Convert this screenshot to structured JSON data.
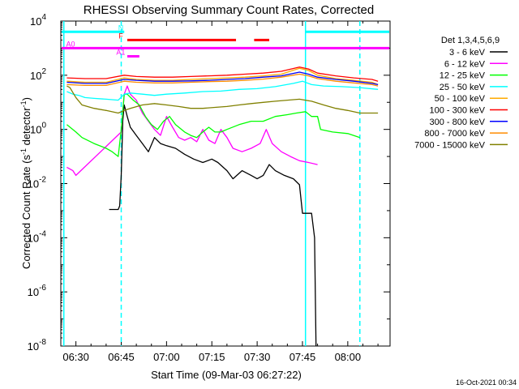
{
  "chart_data": {
    "type": "line",
    "title": "RHESSI Observing Summary Count Rates, Corrected",
    "xlabel": "Start Time (09-Mar-03 06:27:22)",
    "ylabel_prefix": "Corrected Count Rate (s",
    "ylabel_sup1": "-1",
    "ylabel_mid": " detector",
    "ylabel_sup2": "-1",
    "ylabel_suffix": ")",
    "yscale": "log",
    "ylim": [
      1e-08,
      10000
    ],
    "xlim": [
      "06:25",
      "08:14"
    ],
    "x_ticks": [
      "06:30",
      "06:45",
      "07:00",
      "07:15",
      "07:30",
      "07:45",
      "08:00"
    ],
    "y_ticks": [
      {
        "exp": "4",
        "value": 10000
      },
      {
        "exp": "2",
        "value": 100
      },
      {
        "exp": "0",
        "value": 1
      },
      {
        "exp": "-2",
        "value": 0.01
      },
      {
        "exp": "-4",
        "value": 0.0001
      },
      {
        "exp": "-6",
        "value": 1e-06
      },
      {
        "exp": "-8",
        "value": 1e-08
      }
    ],
    "legend_title": "Det 1,3,4,5,6,9",
    "legend_position": "right",
    "series": [
      {
        "name": "3 - 6 keV",
        "color": "#000000",
        "points": [
          [
            "06:41",
            0.0011
          ],
          [
            "06:44",
            0.0011
          ],
          [
            "06:44.5",
            0.0015
          ],
          [
            "06:45",
            0.02
          ],
          [
            "06:45.5",
            2
          ],
          [
            "06:46",
            8
          ],
          [
            "06:47",
            3
          ],
          [
            "06:48",
            1.2
          ],
          [
            "06:50",
            0.6
          ],
          [
            "06:52",
            0.3
          ],
          [
            "06:54",
            0.15
          ],
          [
            "06:56",
            0.5
          ],
          [
            "06:58",
            0.3
          ],
          [
            "07:00",
            0.25
          ],
          [
            "07:03",
            0.2
          ],
          [
            "07:06",
            0.12
          ],
          [
            "07:09",
            0.08
          ],
          [
            "07:12",
            0.06
          ],
          [
            "07:15",
            0.08
          ],
          [
            "07:17",
            0.06
          ],
          [
            "07:20",
            0.03
          ],
          [
            "07:22",
            0.015
          ],
          [
            "07:25",
            0.03
          ],
          [
            "07:28",
            0.02
          ],
          [
            "07:30",
            0.015
          ],
          [
            "07:32",
            0.02
          ],
          [
            "07:34",
            0.05
          ],
          [
            "07:36",
            0.03
          ],
          [
            "07:39",
            0.02
          ],
          [
            "07:42",
            0.015
          ],
          [
            "07:44",
            0.009
          ],
          [
            "07:45",
            0.0008
          ],
          [
            "07:47",
            0.0008
          ],
          [
            "07:48",
            0.0008
          ],
          [
            "07:49",
            0.0001
          ],
          [
            "07:49.5",
            1e-08
          ]
        ]
      },
      {
        "name": "6 - 12 keV",
        "color": "#ff00ff",
        "points": [
          [
            "06:27",
            0.04
          ],
          [
            "06:29",
            0.03
          ],
          [
            "06:30",
            0.02
          ],
          [
            "06:45",
            0.8
          ],
          [
            "06:46",
            20
          ],
          [
            "06:47",
            40
          ],
          [
            "06:48",
            20
          ],
          [
            "06:50",
            12
          ],
          [
            "06:52",
            4
          ],
          [
            "06:54",
            2
          ],
          [
            "06:56",
            1
          ],
          [
            "06:58",
            0.6
          ],
          [
            "07:00",
            3
          ],
          [
            "07:02",
            1.2
          ],
          [
            "07:04",
            0.5
          ],
          [
            "07:06",
            0.4
          ],
          [
            "07:08",
            0.5
          ],
          [
            "07:10",
            0.35
          ],
          [
            "07:12",
            1
          ],
          [
            "07:14",
            0.4
          ],
          [
            "07:16",
            0.3
          ],
          [
            "07:18",
            1
          ],
          [
            "07:20",
            0.5
          ],
          [
            "07:22",
            0.2
          ],
          [
            "07:25",
            0.15
          ],
          [
            "07:28",
            0.2
          ],
          [
            "07:31",
            0.3
          ],
          [
            "07:33",
            1
          ],
          [
            "07:35",
            0.3
          ],
          [
            "07:38",
            0.15
          ],
          [
            "07:41",
            0.1
          ],
          [
            "07:44",
            0.07
          ],
          [
            "07:47",
            0.06
          ],
          [
            "07:50",
            0.05
          ]
        ]
      },
      {
        "name": "12 - 25 keV",
        "color": "#00ff00",
        "points": [
          [
            "06:27",
            1.5
          ],
          [
            "06:30",
            0.8
          ],
          [
            "06:32",
            0.5
          ],
          [
            "06:36",
            0.3
          ],
          [
            "06:40",
            0.2
          ],
          [
            "06:42",
            0.15
          ],
          [
            "06:44",
            0.1
          ],
          [
            "06:45",
            1
          ],
          [
            "06:46",
            20
          ],
          [
            "06:47",
            20
          ],
          [
            "06:49",
            12
          ],
          [
            "06:51",
            8
          ],
          [
            "06:53",
            3
          ],
          [
            "06:55",
            1.5
          ],
          [
            "06:57",
            1
          ],
          [
            "06:59",
            2
          ],
          [
            "07:01",
            3
          ],
          [
            "07:03",
            1.5
          ],
          [
            "07:06",
            0.8
          ],
          [
            "07:08",
            0.6
          ],
          [
            "07:10",
            0.5
          ],
          [
            "07:12",
            0.8
          ],
          [
            "07:14",
            1.2
          ],
          [
            "07:16",
            0.8
          ],
          [
            "07:18",
            0.8
          ],
          [
            "07:20",
            1
          ],
          [
            "07:24",
            1.5
          ],
          [
            "07:28",
            2
          ],
          [
            "07:32",
            2
          ],
          [
            "07:36",
            3
          ],
          [
            "07:40",
            3.5
          ],
          [
            "07:43",
            4
          ],
          [
            "07:46",
            4.5
          ],
          [
            "07:48",
            3
          ],
          [
            "07:50",
            3
          ],
          [
            "07:51",
            1
          ],
          [
            "07:55",
            0.8
          ],
          [
            "08:00",
            0.7
          ],
          [
            "08:04",
            0.5
          ]
        ]
      },
      {
        "name": "25 - 50 keV",
        "color": "#00ffff",
        "points": [
          [
            "06:27",
            25
          ],
          [
            "06:29",
            20
          ],
          [
            "06:31",
            18
          ],
          [
            "06:33",
            15
          ],
          [
            "06:36",
            14
          ],
          [
            "06:40",
            13
          ],
          [
            "06:44",
            12
          ],
          [
            "06:46",
            20
          ],
          [
            "06:48",
            22
          ],
          [
            "06:52",
            20
          ],
          [
            "06:56",
            18
          ],
          [
            "07:00",
            20
          ],
          [
            "07:06",
            22
          ],
          [
            "07:12",
            25
          ],
          [
            "07:18",
            26
          ],
          [
            "07:24",
            30
          ],
          [
            "07:30",
            32
          ],
          [
            "07:36",
            38
          ],
          [
            "07:42",
            50
          ],
          [
            "07:45",
            60
          ],
          [
            "07:48",
            45
          ],
          [
            "07:52",
            40
          ],
          [
            "07:58",
            38
          ],
          [
            "08:04",
            35
          ],
          [
            "08:10",
            30
          ]
        ]
      },
      {
        "name": "50 - 100 keV",
        "color": "#ffaa00",
        "points": [
          [
            "06:27",
            60
          ],
          [
            "06:33",
            55
          ],
          [
            "06:40",
            55
          ],
          [
            "06:46",
            80
          ],
          [
            "06:50",
            70
          ],
          [
            "06:56",
            65
          ],
          [
            "07:02",
            65
          ],
          [
            "07:08",
            70
          ],
          [
            "07:14",
            75
          ],
          [
            "07:20",
            80
          ],
          [
            "07:26",
            85
          ],
          [
            "07:32",
            95
          ],
          [
            "07:38",
            110
          ],
          [
            "07:44",
            180
          ],
          [
            "07:47",
            150
          ],
          [
            "07:50",
            100
          ],
          [
            "07:56",
            75
          ],
          [
            "08:02",
            65
          ],
          [
            "08:08",
            55
          ],
          [
            "08:10",
            45
          ]
        ]
      },
      {
        "name": "100 - 300 keV",
        "color": "#ff0000",
        "points": [
          [
            "06:27",
            80
          ],
          [
            "06:33",
            75
          ],
          [
            "06:40",
            75
          ],
          [
            "06:46",
            100
          ],
          [
            "06:50",
            90
          ],
          [
            "06:56",
            85
          ],
          [
            "07:02",
            85
          ],
          [
            "07:08",
            90
          ],
          [
            "07:14",
            95
          ],
          [
            "07:20",
            100
          ],
          [
            "07:26",
            110
          ],
          [
            "07:32",
            120
          ],
          [
            "07:38",
            140
          ],
          [
            "07:44",
            200
          ],
          [
            "07:47",
            170
          ],
          [
            "07:50",
            120
          ],
          [
            "07:56",
            95
          ],
          [
            "08:02",
            80
          ],
          [
            "08:08",
            70
          ],
          [
            "08:10",
            60
          ]
        ]
      },
      {
        "name": "300 - 800 keV",
        "color": "#0000ff",
        "points": [
          [
            "06:27",
            55
          ],
          [
            "06:33",
            50
          ],
          [
            "06:40",
            50
          ],
          [
            "06:46",
            70
          ],
          [
            "06:50",
            65
          ],
          [
            "06:56",
            60
          ],
          [
            "07:02",
            60
          ],
          [
            "07:08",
            62
          ],
          [
            "07:14",
            65
          ],
          [
            "07:20",
            70
          ],
          [
            "07:26",
            75
          ],
          [
            "07:32",
            85
          ],
          [
            "07:38",
            95
          ],
          [
            "07:44",
            130
          ],
          [
            "07:47",
            110
          ],
          [
            "07:50",
            85
          ],
          [
            "07:56",
            70
          ],
          [
            "08:02",
            60
          ],
          [
            "08:08",
            50
          ],
          [
            "08:10",
            45
          ]
        ]
      },
      {
        "name": "800 - 7000 keV",
        "color": "#ff8c00",
        "points": [
          [
            "06:27",
            45
          ],
          [
            "06:33",
            42
          ],
          [
            "06:40",
            42
          ],
          [
            "06:46",
            60
          ],
          [
            "06:50",
            55
          ],
          [
            "06:56",
            52
          ],
          [
            "07:02",
            52
          ],
          [
            "07:08",
            55
          ],
          [
            "07:14",
            58
          ],
          [
            "07:20",
            60
          ],
          [
            "07:26",
            65
          ],
          [
            "07:32",
            72
          ],
          [
            "07:38",
            85
          ],
          [
            "07:44",
            110
          ],
          [
            "07:47",
            95
          ],
          [
            "07:50",
            75
          ],
          [
            "07:56",
            60
          ],
          [
            "08:02",
            52
          ],
          [
            "08:08",
            45
          ],
          [
            "08:10",
            40
          ]
        ]
      },
      {
        "name": "7000 - 15000 keV",
        "color": "#808000",
        "points": [
          [
            "06:27",
            40
          ],
          [
            "06:28",
            35
          ],
          [
            "06:30",
            15
          ],
          [
            "06:32",
            8
          ],
          [
            "06:36",
            6
          ],
          [
            "06:40",
            5
          ],
          [
            "06:44",
            4
          ],
          [
            "06:46",
            5
          ],
          [
            "06:48",
            6
          ],
          [
            "06:52",
            8
          ],
          [
            "06:56",
            9
          ],
          [
            "07:00",
            8
          ],
          [
            "07:04",
            7
          ],
          [
            "07:08",
            6
          ],
          [
            "07:12",
            6
          ],
          [
            "07:16",
            6.5
          ],
          [
            "07:20",
            7
          ],
          [
            "07:24",
            8
          ],
          [
            "07:28",
            9
          ],
          [
            "07:32",
            10
          ],
          [
            "07:36",
            11
          ],
          [
            "07:40",
            12
          ],
          [
            "07:44",
            13
          ],
          [
            "07:48",
            11
          ],
          [
            "07:52",
            8
          ],
          [
            "07:56",
            6
          ],
          [
            "08:00",
            5
          ],
          [
            "08:04",
            4
          ],
          [
            "08:10",
            4
          ]
        ]
      }
    ],
    "flags": [
      {
        "label": "N",
        "color": "#00ffff",
        "y": 4000,
        "segments": [
          [
            "06:25",
            "06:46"
          ],
          [
            "07:46",
            "08:14"
          ]
        ]
      },
      {
        "label": "F",
        "color": "#ff0000",
        "y": 2000,
        "segments": [
          [
            "06:47",
            "07:23"
          ],
          [
            "07:29",
            "07:34"
          ]
        ]
      },
      {
        "label": "A0",
        "color": "#ff00ff",
        "y": 1000,
        "segments": [
          [
            "06:25",
            "08:14"
          ]
        ]
      },
      {
        "label": "A1",
        "color": "#ff00ff",
        "y": 500,
        "segments": [
          [
            "06:47",
            "06:51"
          ]
        ]
      }
    ],
    "vlines": [
      {
        "x": "06:26",
        "color": "#00ffff",
        "style": "solid"
      },
      {
        "x": "06:45",
        "color": "#00ffff",
        "style": "dashed"
      },
      {
        "x": "07:46",
        "color": "#00ffff",
        "style": "solid"
      },
      {
        "x": "08:04",
        "color": "#00ffff",
        "style": "dashed"
      }
    ]
  },
  "footer": {
    "date_stamp": "16-Oct-2021 00:34"
  }
}
